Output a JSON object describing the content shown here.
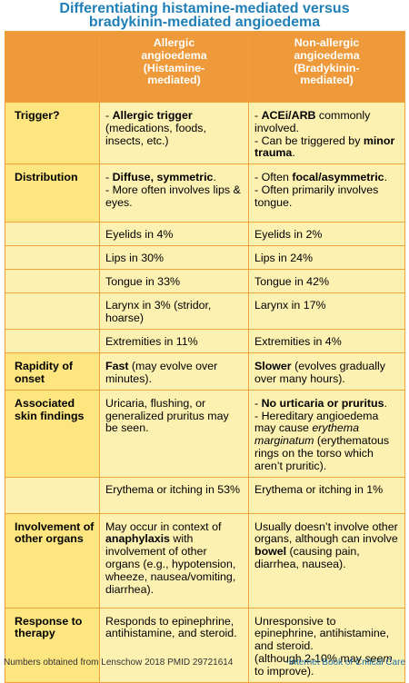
{
  "title": {
    "line1": "Differentiating histamine-mediated versus",
    "line2": "bradykinin-mediated angioedema"
  },
  "columns": {
    "allergic": [
      "Allergic",
      "angioedema",
      "(Histamine-",
      "mediated)"
    ],
    "nonallergic": [
      "Non-allergic",
      "angioedema",
      "(Bradykinin-",
      "mediated)"
    ]
  },
  "rows": {
    "trigger": {
      "label": "Trigger?",
      "a1": "- ",
      "a2": "Allergic trigger",
      "a3": " (medications, foods, insects, etc.)",
      "b1": "- ",
      "b2": "ACEi/ARB",
      "b3": " commonly involved.",
      "b4": "- Can be triggered by ",
      "b5": "minor trauma",
      "b6": "."
    },
    "distribution": {
      "label": "Distribution",
      "a1": "- ",
      "a2": "Diffuse, symmetric",
      "a3": ".",
      "a4": "- More often involves lips & eyes.",
      "b1": "- Often ",
      "b2": "focal/asymmetric",
      "b3": ".",
      "b4": "- Often primarily involves tongue."
    },
    "eyelids": {
      "a": "Eyelids in 4%",
      "b": "Eyelids in 2%"
    },
    "lips": {
      "a": "Lips in 30%",
      "b": "Lips in 24%"
    },
    "tongue": {
      "a": "Tongue in 33%",
      "b": "Tongue in 42%"
    },
    "larynx": {
      "a": "Larynx in 3% (stridor, hoarse)",
      "b": "Larynx in 17%"
    },
    "extremities": {
      "a": "Extremities in 11%",
      "b": "Extremities in 4%"
    },
    "rapidity": {
      "label": "Rapidity of onset",
      "a1": "Fast",
      "a2": " (may evolve over minutes).",
      "b1": "Slower",
      "b2": " (evolves gradually over many hours)."
    },
    "skin": {
      "label": "Associated skin findings",
      "a": "Uricaria, flushing, or generalized pruritus may be seen.",
      "b1": "- ",
      "b2": "No urticaria or pruritus",
      "b3": ".",
      "b4": "- Hereditary angioedema may cause ",
      "b5": "erythema marginatum",
      "b6": " (erythematous rings on the torso which aren’t pruritic)."
    },
    "erythema": {
      "a": "Erythema or itching in 53%",
      "b": "Erythema or itching in 1%"
    },
    "organs": {
      "label": "Involvement of other organs",
      "a1": "May occur in context of ",
      "a2": "anaphylaxis",
      "a3": " with involvement of other organs (e.g., hypotension, wheeze, nausea/vomiting, diarrhea).",
      "b1": "Usually doesn’t involve other organs, although can involve ",
      "b2": "bowel",
      "b3": " (causing pain, diarrhea, nausea)."
    },
    "response": {
      "label": "Response to therapy",
      "a": "Responds to epinephrine, antihistamine, and steroid.",
      "b1": "Unresponsive to epinephrine, antihistamine, and steroid.",
      "b2": "(although 2-10% may ",
      "b3": "seem",
      "b4": " to improve)."
    }
  },
  "footer": {
    "source": "Numbers obtained from Lenschow 2018 PMID 29721614",
    "credit": "-Internet Book of Critical Care"
  },
  "colors": {
    "title": "#1f7fb6",
    "header_bg": "#ef9a3a",
    "label_bg": "#fde57f",
    "cell_bg": "#fdf1b2",
    "border": "#f0a13a"
  }
}
